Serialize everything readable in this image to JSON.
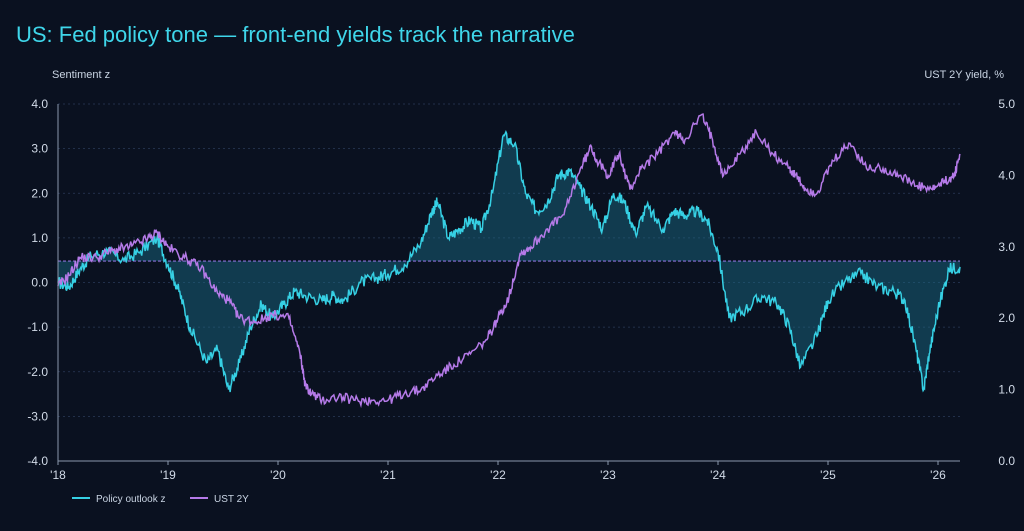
{
  "chart_data": {
    "type": "line",
    "title": "US: Fed policy tone — front-end yields track the narrative",
    "ylabel_left": "Sentiment z",
    "ylabel_right": "UST 2Y yield, %",
    "ylim_left": [
      -4.0,
      4.0
    ],
    "ylim_right": [
      0.0,
      5.0
    ],
    "yticks_left": [
      "4.0",
      "3.0",
      "2.0",
      "1.0",
      "0.0",
      "-1.0",
      "-2.0",
      "-3.0",
      "-4.0"
    ],
    "yticks_left_values": [
      4,
      3,
      2,
      1,
      0,
      -1,
      -2,
      -3,
      -4
    ],
    "yticks_right": [
      "5.0",
      "4.0",
      "3.0",
      "2.0",
      "1.0",
      "0.0"
    ],
    "yticks_right_values": [
      5,
      4,
      3,
      2,
      1,
      0
    ],
    "xlim": [
      2018.0,
      2026.2
    ],
    "xticks": [
      "'18",
      "'19",
      "'20",
      "'21",
      "'22",
      "'23",
      "'24",
      "'25",
      "'26"
    ],
    "xticks_values": [
      2018,
      2019,
      2020,
      2021,
      2022,
      2023,
      2024,
      2025,
      2026
    ],
    "grid": true,
    "legend_position": "bottom-left",
    "colors": {
      "sentiment": "#36d0e4",
      "yield": "#b57ae8",
      "fill": "#1b6f8a",
      "baseline": "#8a6fd6"
    },
    "series": [
      {
        "name": "Policy outlook z",
        "axis": "left",
        "x": [
          2018.0,
          2018.1,
          2018.2,
          2018.3,
          2018.45,
          2018.6,
          2018.75,
          2018.9,
          2019.0,
          2019.1,
          2019.2,
          2019.35,
          2019.45,
          2019.55,
          2019.65,
          2019.75,
          2019.85,
          2019.95,
          2020.05,
          2020.15,
          2020.25,
          2020.4,
          2020.5,
          2020.6,
          2020.75,
          2020.9,
          2021.0,
          2021.15,
          2021.3,
          2021.4,
          2021.45,
          2021.55,
          2021.65,
          2021.75,
          2021.85,
          2021.95,
          2022.05,
          2022.15,
          2022.25,
          2022.35,
          2022.45,
          2022.55,
          2022.65,
          2022.75,
          2022.85,
          2022.95,
          2023.05,
          2023.15,
          2023.25,
          2023.35,
          2023.5,
          2023.6,
          2023.7,
          2023.8,
          2023.9,
          2024.0,
          2024.1,
          2024.25,
          2024.4,
          2024.55,
          2024.65,
          2024.75,
          2024.9,
          2025.0,
          2025.15,
          2025.3,
          2025.45,
          2025.6,
          2025.7,
          2025.8,
          2025.87,
          2025.92,
          2026.0,
          2026.1,
          2026.2
        ],
        "values": [
          0.0,
          -0.1,
          0.3,
          0.6,
          0.7,
          0.5,
          0.7,
          1.0,
          0.4,
          -0.2,
          -1.0,
          -1.8,
          -1.5,
          -2.4,
          -1.8,
          -1.0,
          -0.5,
          -0.8,
          -0.5,
          -0.2,
          -0.3,
          -0.4,
          -0.3,
          -0.4,
          0.0,
          0.1,
          0.2,
          0.4,
          0.9,
          1.6,
          1.8,
          1.0,
          1.2,
          1.4,
          1.2,
          2.0,
          3.3,
          3.1,
          2.0,
          1.6,
          1.8,
          2.4,
          2.5,
          2.1,
          1.7,
          1.2,
          2.0,
          1.8,
          1.1,
          1.7,
          1.2,
          1.6,
          1.5,
          1.6,
          1.4,
          0.7,
          -0.8,
          -0.6,
          -0.3,
          -0.5,
          -1.0,
          -1.9,
          -1.2,
          -0.4,
          0.0,
          0.2,
          -0.1,
          -0.2,
          -0.4,
          -1.5,
          -2.4,
          -1.6,
          -0.6,
          0.3,
          0.35
        ]
      },
      {
        "name": "UST 2Y",
        "axis": "right",
        "x": [
          2018.0,
          2018.1,
          2018.2,
          2018.35,
          2018.5,
          2018.65,
          2018.8,
          2018.9,
          2019.0,
          2019.15,
          2019.3,
          2019.45,
          2019.55,
          2019.65,
          2019.8,
          2019.95,
          2020.1,
          2020.2,
          2020.25,
          2020.3,
          2020.4,
          2020.55,
          2020.7,
          2020.85,
          2021.0,
          2021.15,
          2021.3,
          2021.45,
          2021.6,
          2021.75,
          2021.9,
          2022.0,
          2022.1,
          2022.2,
          2022.3,
          2022.45,
          2022.6,
          2022.75,
          2022.85,
          2022.9,
          2023.0,
          2023.1,
          2023.2,
          2023.3,
          2023.45,
          2023.6,
          2023.7,
          2023.85,
          2023.95,
          2024.05,
          2024.2,
          2024.35,
          2024.5,
          2024.65,
          2024.7,
          2024.8,
          2024.9,
          2025.05,
          2025.2,
          2025.35,
          2025.5,
          2025.65,
          2025.8,
          2025.95,
          2026.05,
          2026.15,
          2026.2
        ],
        "values": [
          2.45,
          2.6,
          2.85,
          2.85,
          2.95,
          3.0,
          3.1,
          3.2,
          3.0,
          2.85,
          2.7,
          2.35,
          2.25,
          2.0,
          1.95,
          2.05,
          2.0,
          1.5,
          1.05,
          0.95,
          0.85,
          0.9,
          0.85,
          0.85,
          0.85,
          0.95,
          1.0,
          1.2,
          1.35,
          1.5,
          1.7,
          2.0,
          2.3,
          2.9,
          3.0,
          3.25,
          3.45,
          4.1,
          4.4,
          4.2,
          4.0,
          4.3,
          3.8,
          4.1,
          4.3,
          4.6,
          4.5,
          4.85,
          4.5,
          4.0,
          4.3,
          4.6,
          4.3,
          4.1,
          4.0,
          3.8,
          3.75,
          4.2,
          4.45,
          4.1,
          4.1,
          4.0,
          3.85,
          3.8,
          3.9,
          4.0,
          4.3
        ]
      }
    ],
    "reference_line": {
      "axis": "right",
      "value": 2.8
    }
  }
}
